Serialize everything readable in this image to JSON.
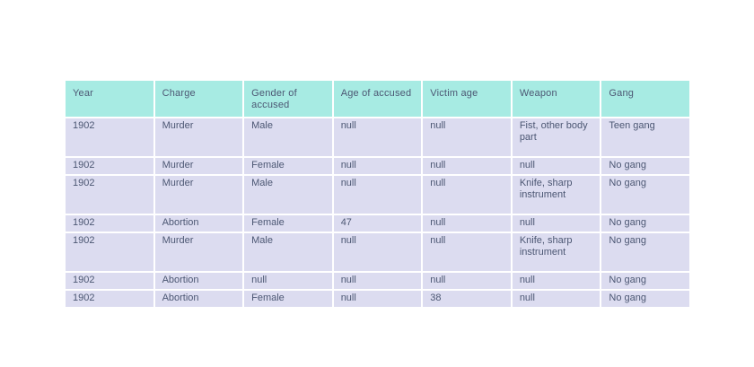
{
  "table": {
    "columns": [
      "Year",
      "Charge",
      "Gender of accused",
      "Age of accused",
      "Victim age",
      "Weapon",
      "Gang"
    ],
    "rows": [
      [
        "1902",
        "Murder",
        "Male",
        "null",
        "null",
        "Fist, other body part",
        "Teen gang"
      ],
      [
        "1902",
        "Murder",
        "Female",
        "null",
        "null",
        "null",
        "No gang"
      ],
      [
        "1902",
        "Murder",
        "Male",
        "null",
        "null",
        "Knife, sharp instrument",
        "No gang"
      ],
      [
        "1902",
        "Abortion",
        "Female",
        "47",
        "null",
        "null",
        "No gang"
      ],
      [
        "1902",
        "Murder",
        "Male",
        "null",
        "null",
        "Knife, sharp instrument",
        "No gang"
      ],
      [
        "1902",
        "Abortion",
        "null",
        "null",
        "null",
        "null",
        "No gang"
      ],
      [
        "1902",
        "Abortion",
        "Female",
        "null",
        "38",
        "null",
        "No gang"
      ]
    ],
    "colors": {
      "header_bg": "#a7ebe3",
      "row_bg": "#dcdcf0",
      "text": "#4c5773",
      "page_bg": "#ffffff"
    }
  }
}
